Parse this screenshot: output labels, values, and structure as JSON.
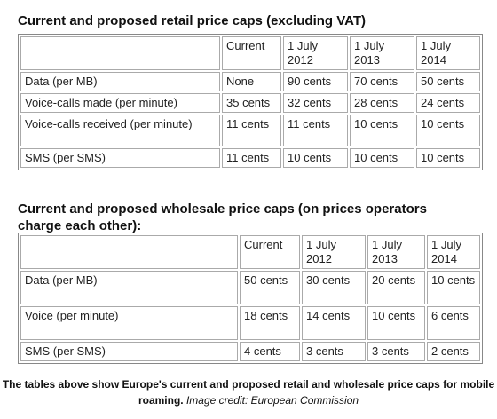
{
  "retail": {
    "title": "Current and proposed retail price caps (excluding VAT)",
    "header": [
      "",
      "Current",
      "1 July 2012",
      "1 July 2013",
      "1 July 2014"
    ],
    "rows": [
      [
        "Data (per MB)",
        "None",
        "90 cents",
        "70 cents",
        "50 cents"
      ],
      [
        "Voice-calls made (per minute)",
        "35 cents",
        "32 cents",
        "28 cents",
        "24 cents"
      ],
      [
        "Voice-calls received (per minute)",
        "11 cents",
        "11 cents",
        "10 cents",
        "10 cents"
      ],
      [
        "SMS (per SMS)",
        "11 cents",
        "10 cents",
        "10 cents",
        "10 cents"
      ]
    ]
  },
  "wholesale": {
    "title": "Current and proposed wholesale price caps (on prices operators charge each other):",
    "header": [
      "",
      "Current",
      "1 July 2012",
      "1 July 2013",
      "1 July 2014"
    ],
    "rows": [
      [
        "Data (per MB)",
        "50 cents",
        "30 cents",
        "20 cents",
        "10 cents"
      ],
      [
        "Voice (per minute)",
        "18 cents",
        "14 cents",
        "10 cents",
        "6 cents"
      ],
      [
        "SMS (per SMS)",
        "4 cents",
        "3 cents",
        "3 cents",
        "2 cents"
      ]
    ]
  },
  "caption": {
    "text": "The tables above show Europe's current and proposed retail and wholesale price caps for mobile roaming.",
    "credit": "Image credit: European Commission"
  }
}
